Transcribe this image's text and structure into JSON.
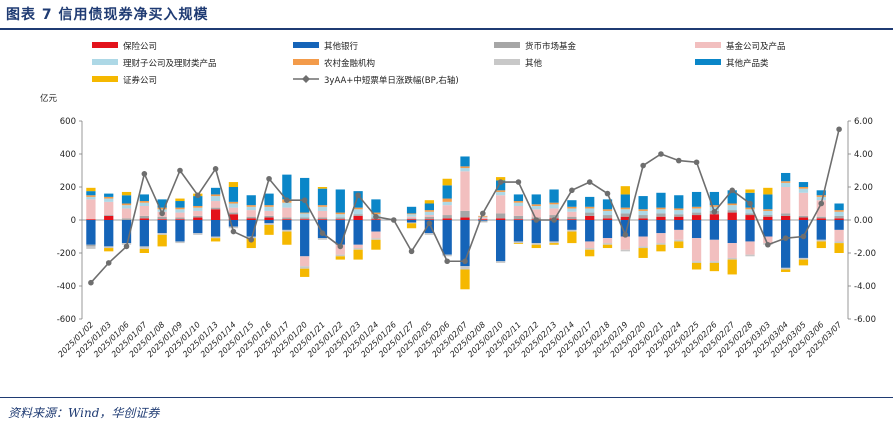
{
  "header": {
    "title": "图表 7   信用债现券净买入规模"
  },
  "footer": {
    "source": "资料来源：Wind，华创证券"
  },
  "chart_data": {
    "type": "bar",
    "stacked": true,
    "title": "信用债现券净买入规模",
    "ylabel": "亿元",
    "y2label": "",
    "ylim": [
      -600,
      600
    ],
    "y2lim": [
      -6.0,
      6.0
    ],
    "yticks": [
      "600",
      "400",
      "200",
      "0",
      "-200",
      "-400",
      "-600"
    ],
    "y2ticks": [
      "6.00",
      "4.00",
      "2.00",
      "0.00",
      "-2.00",
      "-4.00",
      "-6.00"
    ],
    "legend_position": "top",
    "categories": [
      "2025/01/02",
      "2025/01/03",
      "2025/01/06",
      "2025/01/07",
      "2025/01/08",
      "2025/01/09",
      "2025/01/10",
      "2025/01/13",
      "2025/01/14",
      "2025/01/15",
      "2025/01/16",
      "2025/01/17",
      "2025/01/20",
      "2025/01/21",
      "2025/01/22",
      "2025/01/23",
      "2025/01/24",
      "2025/01/26",
      "2025/01/27",
      "2025/02/05",
      "2025/02/06",
      "2025/02/07",
      "2025/02/08",
      "2025/02/10",
      "2025/02/11",
      "2025/02/12",
      "2025/02/13",
      "2025/02/14",
      "2025/02/17",
      "2025/02/18",
      "2025/02/19",
      "2025/02/20",
      "2025/02/21",
      "2025/02/24",
      "2025/02/25",
      "2025/02/26",
      "2025/02/27",
      "2025/02/28",
      "2025/03/03",
      "2025/03/04",
      "2025/03/05",
      "2025/03/06",
      "2025/03/07"
    ],
    "series": [
      {
        "name": "保险公司",
        "color": "#e3121b",
        "values": [
          5,
          25,
          0,
          10,
          5,
          5,
          15,
          65,
          35,
          10,
          15,
          5,
          5,
          5,
          5,
          25,
          5,
          0,
          5,
          5,
          10,
          15,
          5,
          10,
          5,
          5,
          10,
          5,
          25,
          10,
          20,
          10,
          20,
          20,
          30,
          35,
          45,
          30,
          20,
          25,
          15,
          10,
          10
        ]
      },
      {
        "name": "其他银行",
        "color": "#1564b8",
        "values": [
          -150,
          -160,
          -140,
          -160,
          -80,
          -130,
          -80,
          -100,
          -40,
          -100,
          -20,
          -60,
          -220,
          -110,
          -150,
          -150,
          -70,
          0,
          -15,
          -80,
          -210,
          -280,
          -5,
          -250,
          -130,
          -140,
          -130,
          -60,
          -130,
          -110,
          -100,
          -100,
          -80,
          -60,
          -110,
          -120,
          -140,
          -130,
          -100,
          -290,
          -230,
          -120,
          -60
        ]
      },
      {
        "name": "货币市场基金",
        "color": "#a6a6a6",
        "values": [
          -10,
          5,
          10,
          15,
          15,
          10,
          10,
          10,
          10,
          10,
          10,
          10,
          10,
          10,
          10,
          10,
          10,
          0,
          5,
          15,
          20,
          40,
          -5,
          30,
          20,
          10,
          20,
          15,
          20,
          20,
          20,
          20,
          20,
          15,
          15,
          20,
          15,
          10,
          10,
          15,
          10,
          10,
          15
        ]
      },
      {
        "name": "基金公司及产品",
        "color": "#f2bfbf",
        "values": [
          120,
          80,
          60,
          60,
          30,
          30,
          30,
          40,
          30,
          40,
          30,
          60,
          -60,
          40,
          -60,
          -20,
          -40,
          0,
          10,
          10,
          60,
          240,
          10,
          110,
          60,
          50,
          40,
          30,
          -40,
          -30,
          -80,
          -60,
          -60,
          -60,
          -140,
          -130,
          -90,
          -80,
          -40,
          160,
          140,
          100,
          -70
        ]
      },
      {
        "name": "理财子公司及理财类产品",
        "color": "#add8e6",
        "values": [
          15,
          20,
          20,
          20,
          15,
          20,
          20,
          30,
          25,
          20,
          25,
          30,
          25,
          25,
          20,
          30,
          20,
          0,
          15,
          20,
          20,
          20,
          5,
          20,
          20,
          20,
          25,
          20,
          25,
          25,
          25,
          25,
          25,
          25,
          25,
          25,
          30,
          25,
          25,
          25,
          25,
          20,
          25
        ]
      },
      {
        "name": "农村金融机构",
        "color": "#f39b4a",
        "values": [
          10,
          10,
          10,
          10,
          10,
          10,
          10,
          10,
          10,
          10,
          10,
          20,
          5,
          10,
          10,
          10,
          10,
          0,
          5,
          10,
          20,
          10,
          5,
          10,
          10,
          10,
          10,
          10,
          10,
          10,
          10,
          10,
          10,
          10,
          10,
          10,
          10,
          10,
          10,
          10,
          10,
          10,
          10
        ]
      },
      {
        "name": "其他",
        "color": "#c8c8c8",
        "values": [
          -15,
          -10,
          -10,
          -15,
          -10,
          -10,
          -10,
          -10,
          -10,
          -10,
          -10,
          -10,
          -15,
          -10,
          -10,
          -10,
          -10,
          0,
          -5,
          -10,
          -10,
          -20,
          -5,
          -10,
          -10,
          -10,
          -10,
          -10,
          -10,
          -10,
          -10,
          -10,
          -10,
          -10,
          -10,
          -10,
          -10,
          -10,
          -10,
          -10,
          -10,
          -10,
          -10
        ]
      },
      {
        "name": "其他产品类",
        "color": "#0a86c8",
        "values": [
          25,
          20,
          50,
          40,
          50,
          40,
          60,
          40,
          90,
          60,
          70,
          150,
          210,
          100,
          140,
          100,
          80,
          0,
          40,
          40,
          80,
          60,
          0,
          60,
          40,
          60,
          80,
          40,
          60,
          60,
          80,
          80,
          90,
          80,
          90,
          80,
          80,
          90,
          90,
          50,
          30,
          30,
          40
        ]
      },
      {
        "name": "证券公司",
        "color": "#f5b800",
        "values": [
          20,
          -20,
          20,
          -25,
          -70,
          15,
          15,
          -20,
          30,
          -60,
          -60,
          -80,
          -50,
          10,
          -20,
          -60,
          -60,
          0,
          -30,
          20,
          40,
          -120,
          0,
          20,
          -5,
          -20,
          -10,
          -70,
          -40,
          -20,
          50,
          -60,
          -40,
          -40,
          -40,
          -50,
          -90,
          20,
          40,
          -15,
          -35,
          -40,
          -60
        ]
      },
      {
        "name": "3yAA+中短票单日涨跌幅(BP,右轴)",
        "type": "line",
        "axis": "right",
        "color": "#6e6e6e",
        "values": [
          -3.8,
          -2.6,
          -1.6,
          2.8,
          0.4,
          3.0,
          1.5,
          3.1,
          -0.7,
          -1.2,
          2.5,
          1.2,
          1.2,
          -0.8,
          -1.6,
          1.5,
          0.2,
          0.0,
          -1.9,
          -0.2,
          -2.5,
          -2.5,
          0.4,
          2.3,
          2.3,
          0.0,
          0.0,
          1.8,
          2.3,
          1.6,
          -0.9,
          3.3,
          4.0,
          3.6,
          3.5,
          0.5,
          1.8,
          1.0,
          -1.5,
          -1.1,
          -1.0,
          1.0,
          5.5
        ]
      }
    ]
  }
}
